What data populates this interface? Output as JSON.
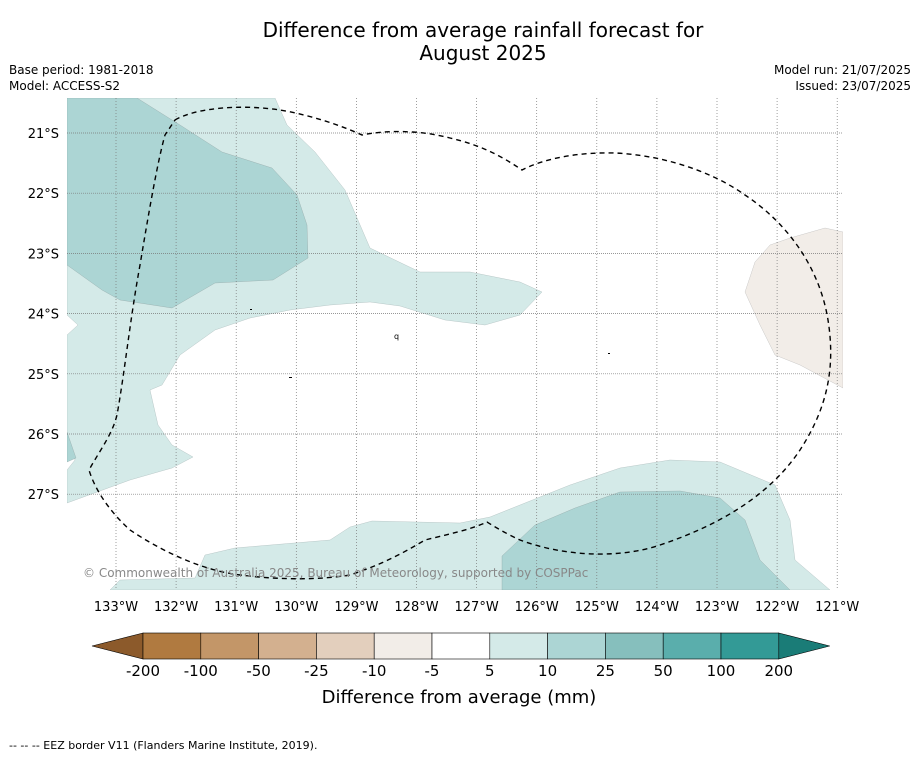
{
  "title": {
    "line1": "Difference from average rainfall forecast for",
    "line2": "August 2025"
  },
  "meta_left": {
    "base_period": "Base period: 1981-2018",
    "model": "Model: ACCESS-S2"
  },
  "meta_right": {
    "model_run": "Model run: 21/07/2025",
    "issued": "Issued: 23/07/2025"
  },
  "map": {
    "lat_labels": [
      "21°S",
      "22°S",
      "23°S",
      "24°S",
      "25°S",
      "26°S",
      "27°S"
    ],
    "lon_labels": [
      "133°W",
      "132°W",
      "131°W",
      "130°W",
      "129°W",
      "128°W",
      "127°W",
      "126°W",
      "125°W",
      "124°W",
      "123°W",
      "122°W",
      "121°W"
    ],
    "copyright": "© Commonwealth of Australia 2025, Bureau of Meteorology, supported by COSPPac",
    "colors": {
      "wet_light": "#d4eae8",
      "wet_medium": "#acd5d4",
      "dry_light": "#f2ede8",
      "gridline": "#777777"
    }
  },
  "colorbar": {
    "label": "Difference from average (mm)",
    "ticks": [
      "-200",
      "-100",
      "-50",
      "-25",
      "-10",
      "-5",
      "5",
      "10",
      "25",
      "50",
      "100",
      "200"
    ],
    "colors": [
      "#8c5a2b",
      "#b07a40",
      "#c39668",
      "#d3b08f",
      "#e3cfbd",
      "#f2ede8",
      "#ffffff",
      "#d4eae8",
      "#acd5d4",
      "#86bfbd",
      "#5aaeac",
      "#339a96",
      "#1a7c77"
    ]
  },
  "footer": "--  --  -- EEZ border V11 (Flanders Marine Institute, 2019)."
}
